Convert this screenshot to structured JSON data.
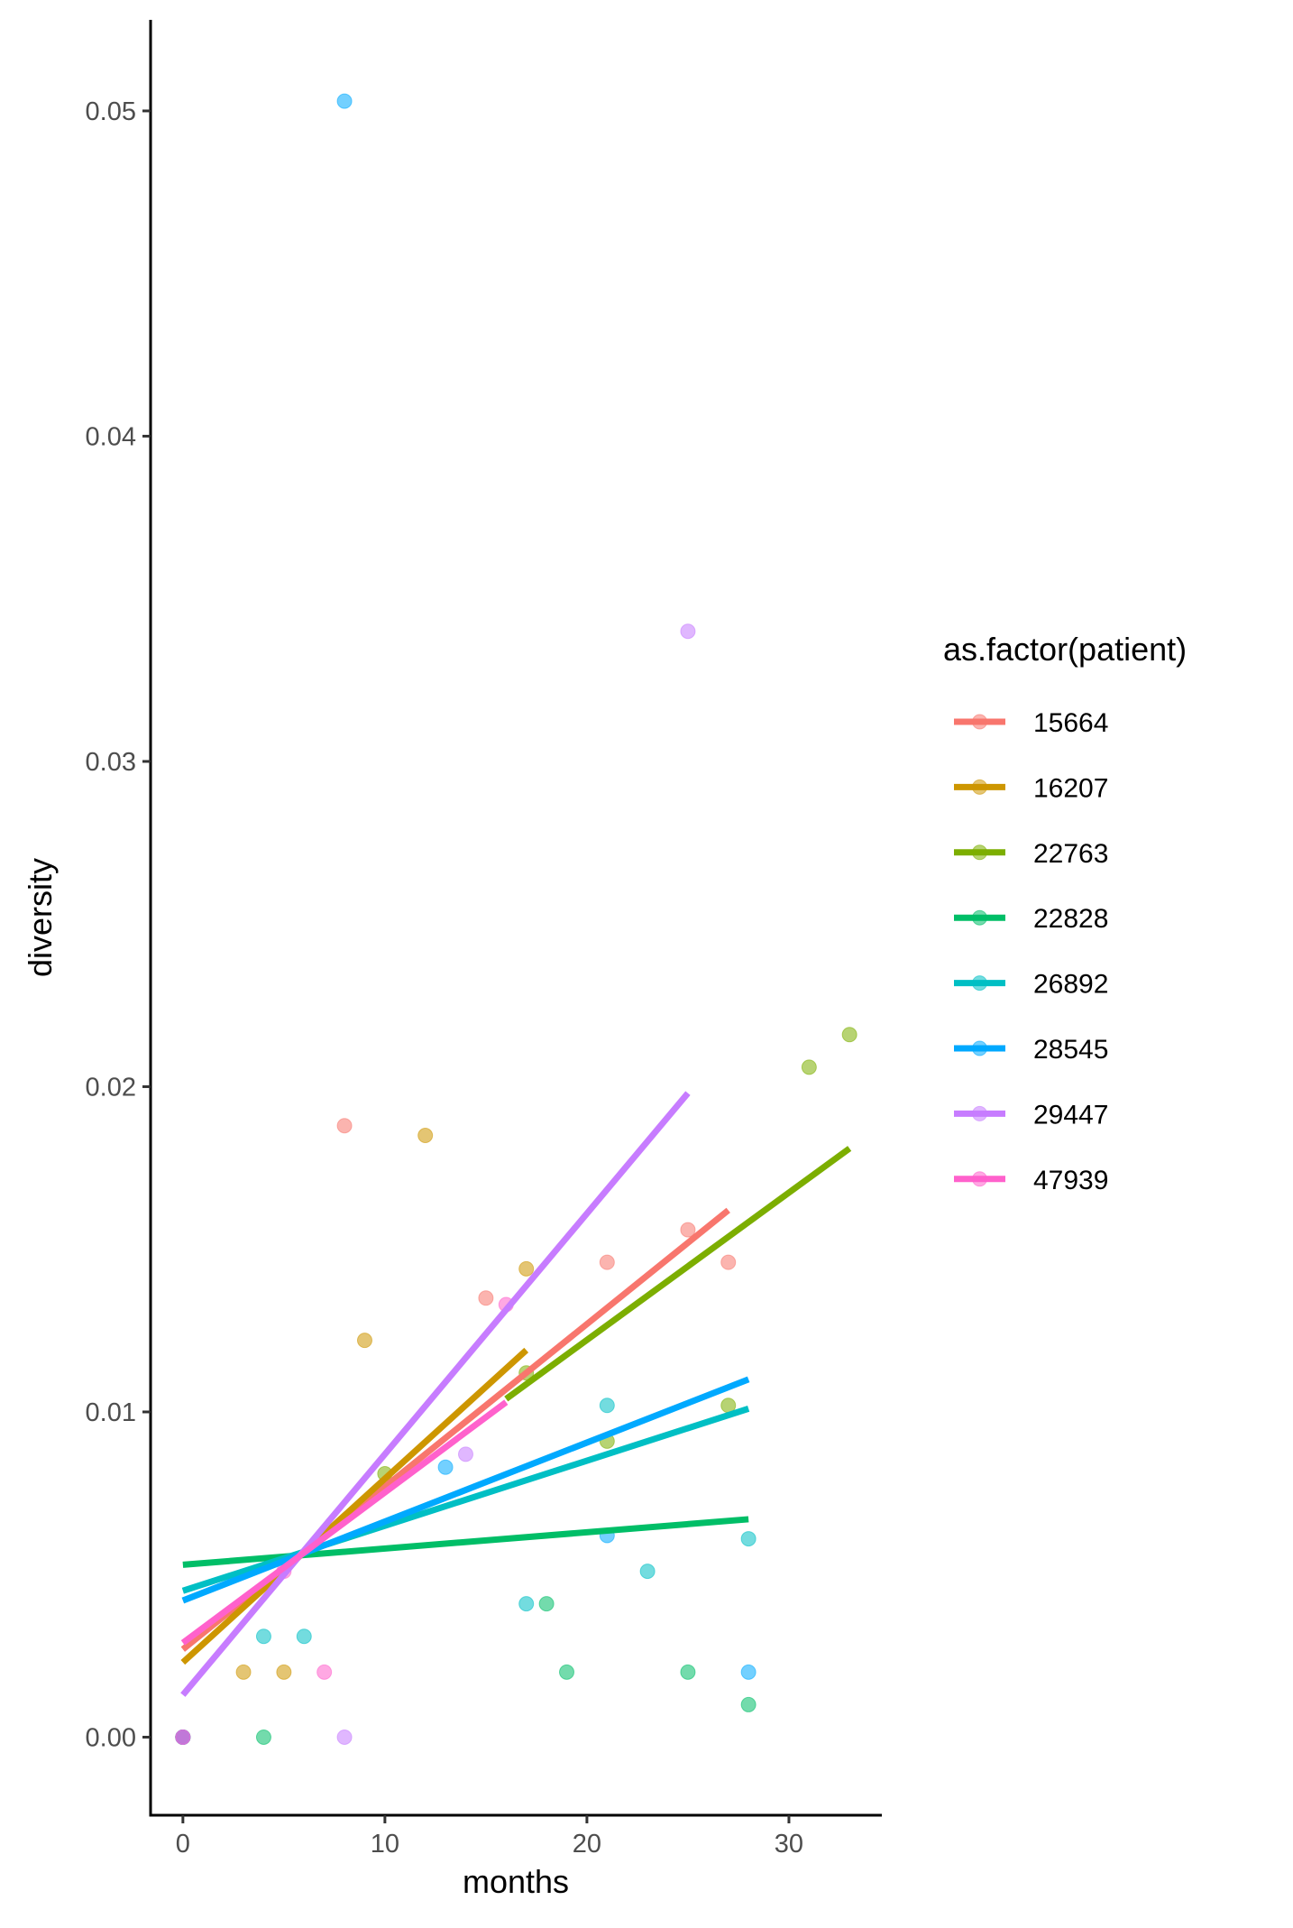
{
  "chart_data": {
    "type": "scatter",
    "title": "",
    "xlabel": "months",
    "ylabel": "diversity",
    "xlim": [
      -1.6,
      34.6
    ],
    "ylim": [
      -0.0024,
      0.0528
    ],
    "x_ticks": [
      0,
      10,
      20,
      30
    ],
    "x_tick_labels": [
      "0",
      "10",
      "20",
      "30"
    ],
    "y_ticks": [
      0,
      0.01,
      0.02,
      0.03,
      0.04,
      0.05
    ],
    "y_tick_labels": [
      "0.00",
      "0.01",
      "0.02",
      "0.03",
      "0.04",
      "0.05"
    ],
    "grid": false,
    "legend": {
      "title": "as.factor(patient)",
      "position": "right"
    },
    "series": [
      {
        "name": "15664",
        "color": "#F8766D",
        "points": [
          [
            0,
            0
          ],
          [
            8,
            0.0188
          ],
          [
            15,
            0.0135
          ],
          [
            21,
            0.0146
          ],
          [
            25,
            0.0156
          ],
          [
            27,
            0.0146
          ]
        ],
        "fit": [
          [
            0,
            0.0027
          ],
          [
            27,
            0.0162
          ]
        ]
      },
      {
        "name": "16207",
        "color": "#CD9600",
        "points": [
          [
            0,
            0
          ],
          [
            3,
            0.002
          ],
          [
            5,
            0.002
          ],
          [
            9,
            0.0122
          ],
          [
            12,
            0.0185
          ],
          [
            17,
            0.0144
          ]
        ],
        "fit": [
          [
            0,
            0.0023
          ],
          [
            17,
            0.0119
          ]
        ]
      },
      {
        "name": "22763",
        "color": "#7CAE00",
        "points": [
          [
            0,
            0
          ],
          [
            10,
            0.0081
          ],
          [
            17,
            0.0112
          ],
          [
            21,
            0.0091
          ],
          [
            27,
            0.0102
          ],
          [
            31,
            0.0206
          ],
          [
            33,
            0.0216
          ]
        ],
        "fit": [
          [
            16,
            0.0104
          ],
          [
            33,
            0.0181
          ]
        ]
      },
      {
        "name": "22828",
        "color": "#00BE67",
        "points": [
          [
            0,
            0
          ],
          [
            4,
            0
          ],
          [
            18,
            0.0041
          ],
          [
            19,
            0.002
          ],
          [
            25,
            0.002
          ],
          [
            28,
            0.001
          ]
        ],
        "fit": [
          [
            0,
            0.0053
          ],
          [
            28,
            0.0067
          ]
        ]
      },
      {
        "name": "26892",
        "color": "#00BFC4",
        "points": [
          [
            0,
            0
          ],
          [
            4,
            0.0031
          ],
          [
            6,
            0.0031
          ],
          [
            17,
            0.0041
          ],
          [
            21,
            0.0102
          ],
          [
            23,
            0.0051
          ],
          [
            28,
            0.0061
          ]
        ],
        "fit": [
          [
            0,
            0.0045
          ],
          [
            28,
            0.0101
          ]
        ]
      },
      {
        "name": "28545",
        "color": "#00A9FF",
        "points": [
          [
            0,
            0
          ],
          [
            8,
            0.0503
          ],
          [
            13,
            0.0083
          ],
          [
            21,
            0.0062
          ],
          [
            28,
            0.002
          ]
        ],
        "fit": [
          [
            0,
            0.0042
          ],
          [
            28,
            0.011
          ]
        ]
      },
      {
        "name": "29447",
        "color": "#C77CFF",
        "points": [
          [
            0,
            0
          ],
          [
            8,
            0
          ],
          [
            14,
            0.0087
          ],
          [
            25,
            0.034
          ]
        ],
        "fit": [
          [
            0,
            0.0013
          ],
          [
            25,
            0.0198
          ]
        ]
      },
      {
        "name": "47939",
        "color": "#FF61CC",
        "points": [
          [
            0,
            0
          ],
          [
            5,
            0.0051
          ],
          [
            7,
            0.002
          ],
          [
            16,
            0.0133
          ]
        ],
        "fit": [
          [
            0,
            0.0029
          ],
          [
            16,
            0.0103
          ]
        ]
      }
    ]
  }
}
